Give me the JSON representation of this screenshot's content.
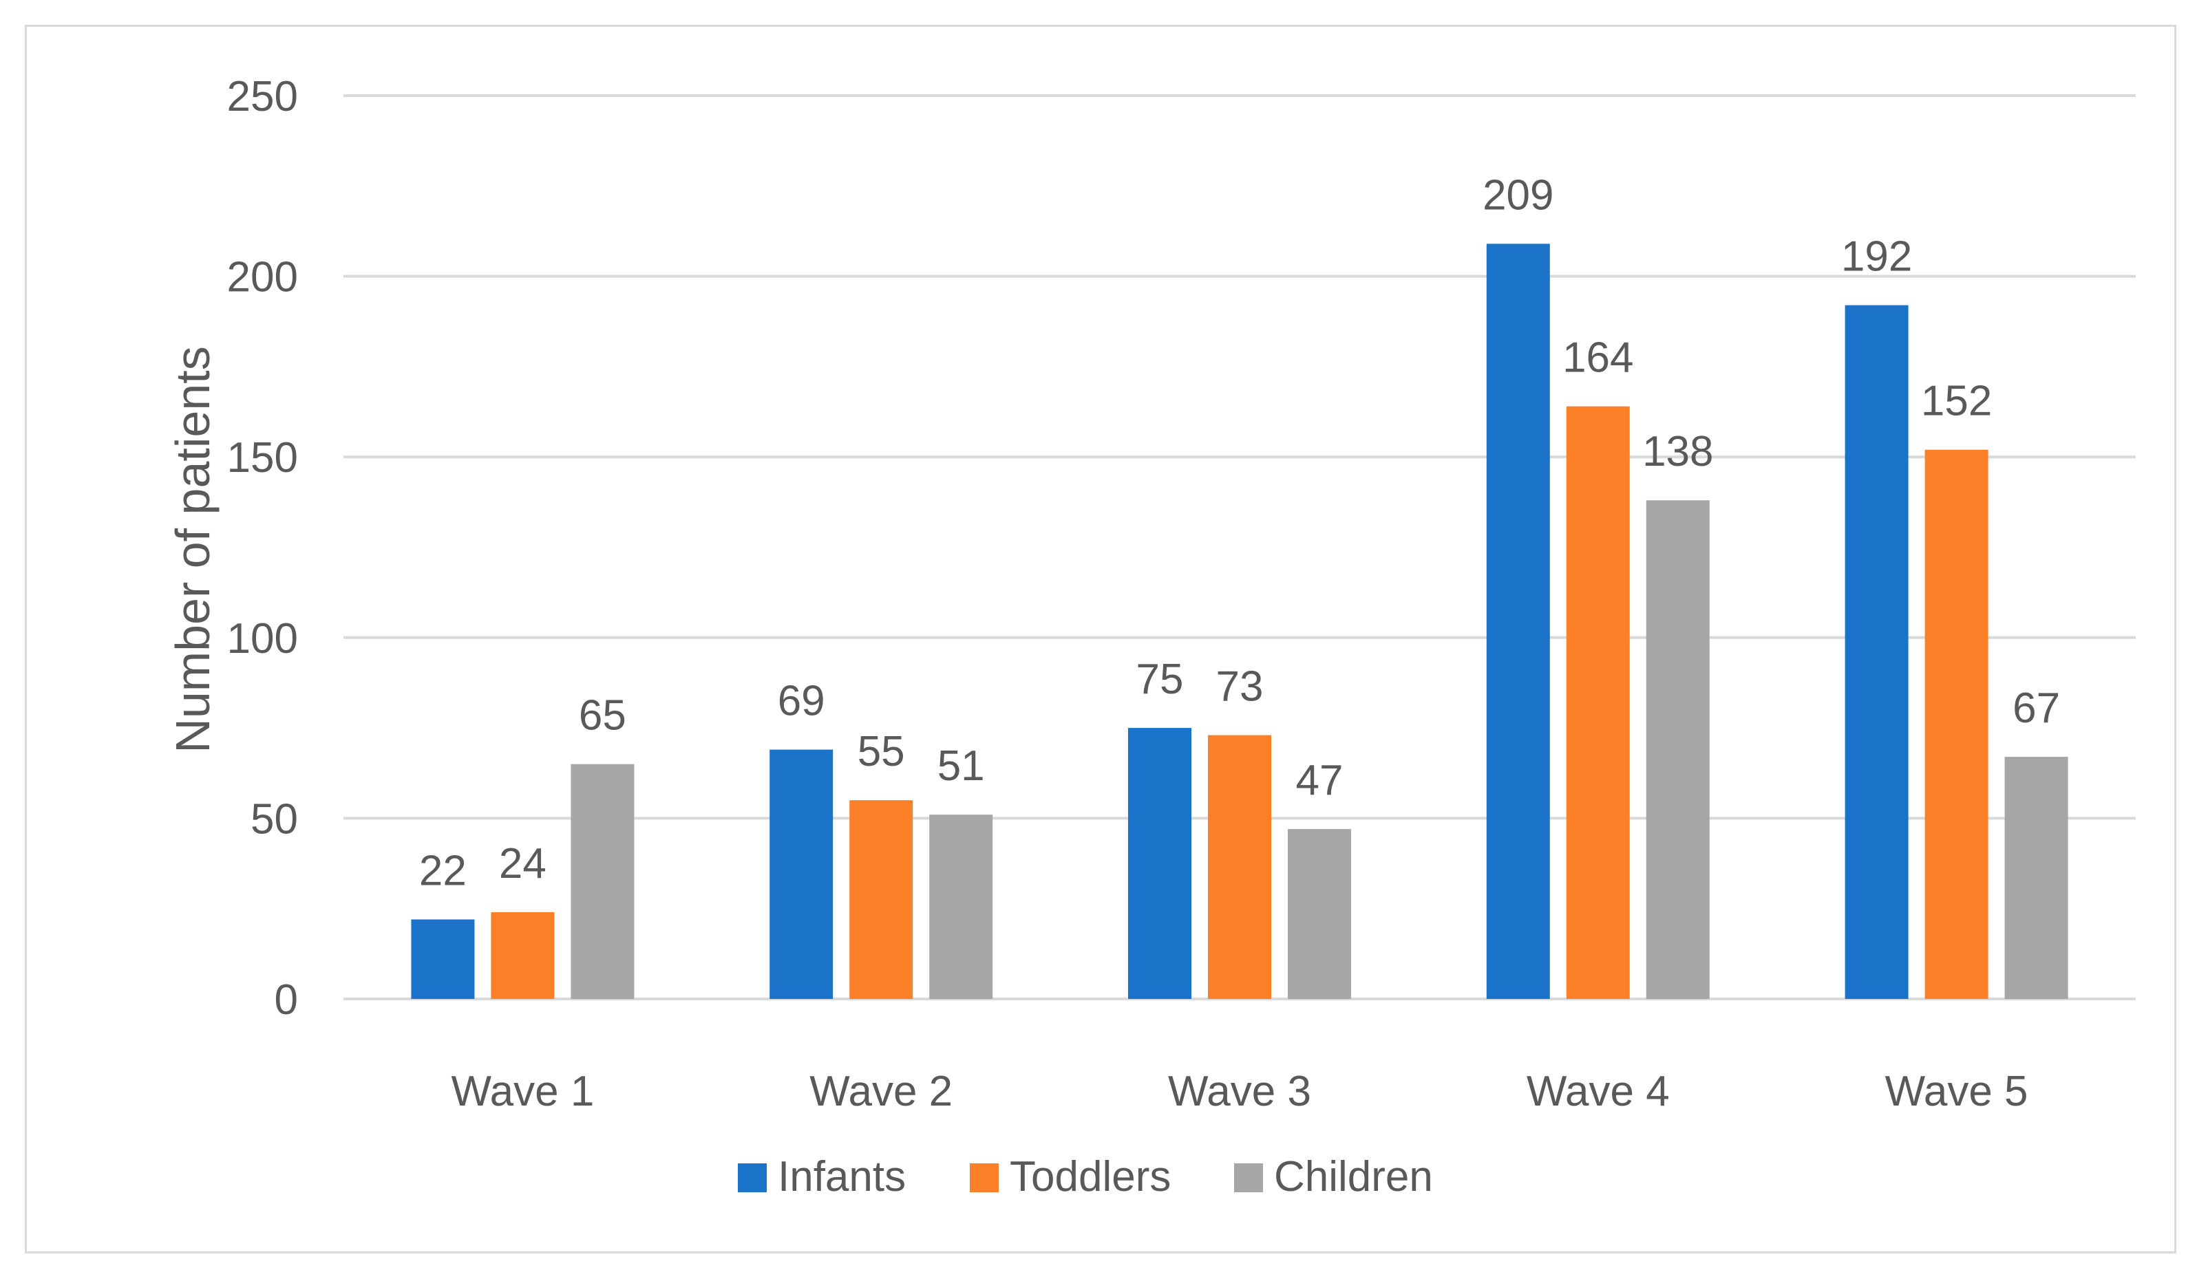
{
  "chart_data": {
    "type": "bar",
    "title": "",
    "xlabel": "",
    "ylabel": "Number of patients",
    "ylim": [
      0,
      250
    ],
    "yticks": [
      0,
      50,
      100,
      150,
      200,
      250
    ],
    "grid": true,
    "legend_position": "bottom",
    "categories": [
      "Wave 1",
      "Wave 2",
      "Wave 3",
      "Wave 4",
      "Wave 5"
    ],
    "series": [
      {
        "name": "Infants",
        "color": "#1a73c9",
        "values": [
          22,
          69,
          75,
          209,
          192
        ]
      },
      {
        "name": "Toddlers",
        "color": "#fb8028",
        "values": [
          24,
          55,
          73,
          164,
          152
        ]
      },
      {
        "name": "Children",
        "color": "#a6a6a6",
        "values": [
          65,
          51,
          47,
          138,
          67
        ]
      }
    ]
  }
}
